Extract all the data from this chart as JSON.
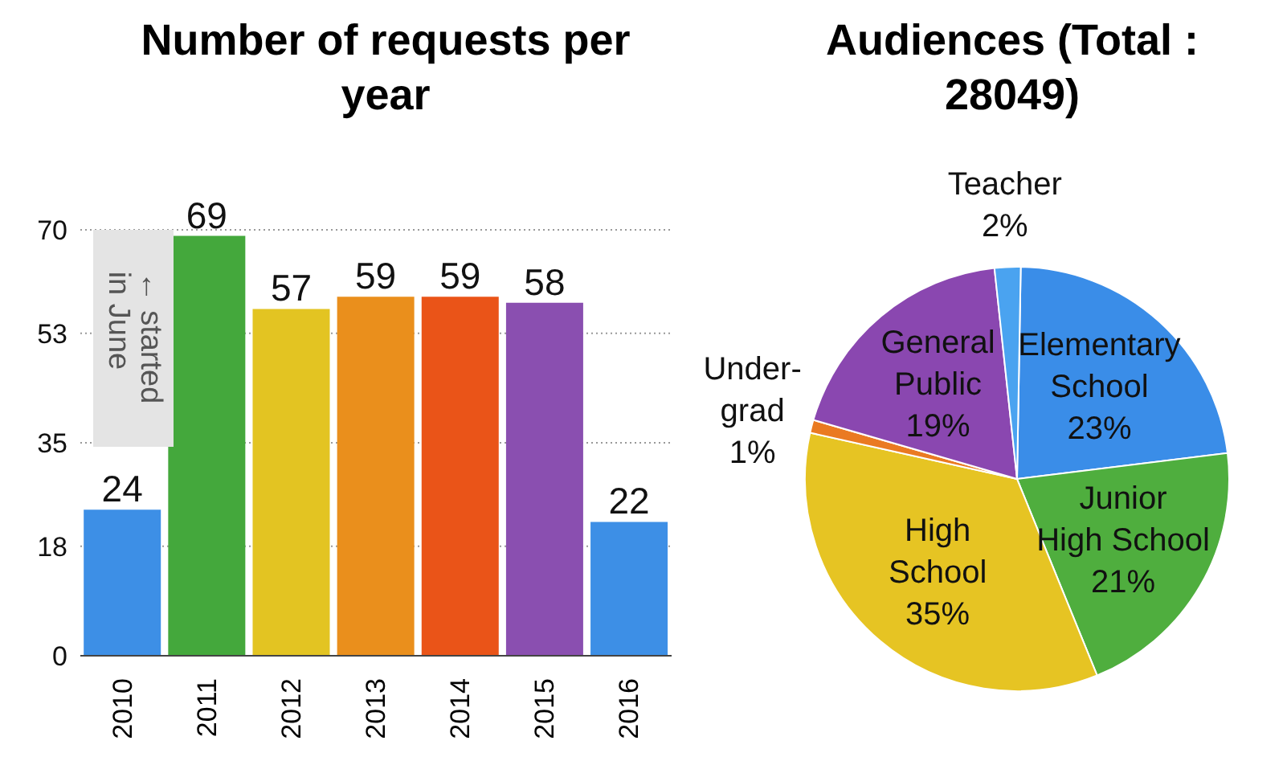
{
  "chart_data": [
    {
      "type": "bar",
      "title": "Number of requests per year",
      "categories": [
        "2010",
        "2011",
        "2012",
        "2013",
        "2014",
        "2015",
        "2016"
      ],
      "values": [
        24,
        69,
        57,
        59,
        59,
        58,
        22
      ],
      "colors": [
        "#3d8fe6",
        "#44a83c",
        "#e3c422",
        "#ea8f1c",
        "#ea5418",
        "#8a4fb0",
        "#3d8fe6"
      ],
      "ylim": [
        0,
        70
      ],
      "yticks": [
        0,
        18,
        35,
        53,
        70
      ],
      "grid": "y",
      "data_labels": true,
      "annotations": [
        "← started\nin June"
      ]
    },
    {
      "type": "pie",
      "title": "Audiences (Total : 28049)",
      "categories": [
        "Elementary\nSchool",
        "Junior\nHigh School",
        "High\nSchool",
        "Under-\ngrad",
        "General\nPublic",
        "Teacher"
      ],
      "values": [
        23,
        21,
        35,
        1,
        19,
        2
      ],
      "value_labels": [
        "23%",
        "21%",
        "35%",
        "1%",
        "19%",
        "2%"
      ],
      "colors": [
        "#3a8de8",
        "#4fae3e",
        "#e6c423",
        "#ea7a22",
        "#8a47b0",
        "#4aa3f0"
      ],
      "legend": false
    }
  ]
}
